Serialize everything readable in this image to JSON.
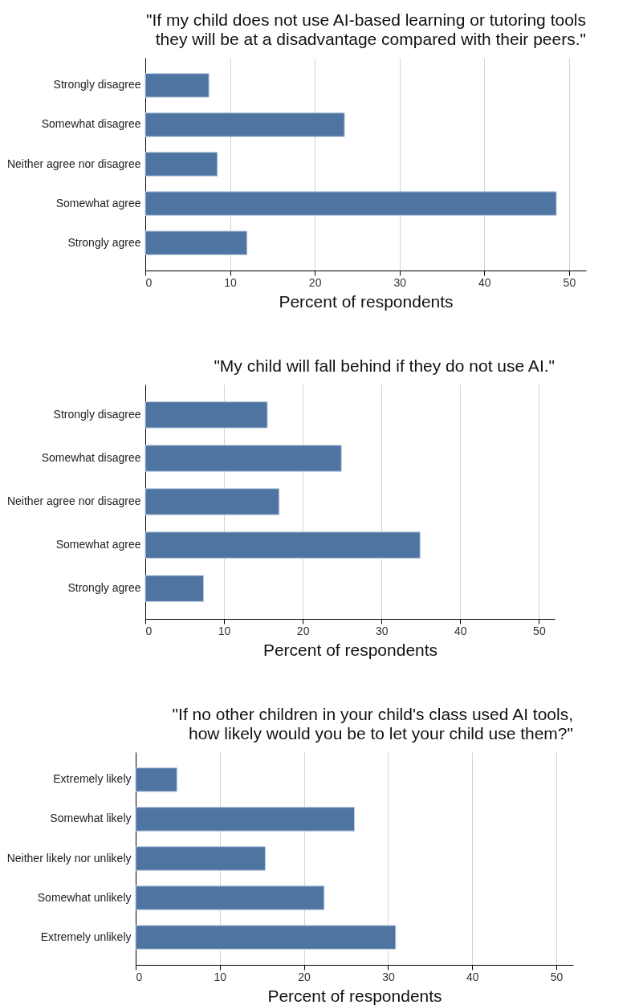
{
  "chart_data": [
    {
      "type": "bar",
      "orientation": "horizontal",
      "title": "\"If my child does not use AI-based learning or tutoring tools\nthey will be at a disadvantage compared with their peers.\"",
      "categories": [
        "Strongly disagree",
        "Somewhat disagree",
        "Neither agree nor disagree",
        "Somewhat agree",
        "Strongly agree"
      ],
      "values": [
        7.5,
        23.5,
        8.5,
        48.5,
        12.0
      ],
      "color": "#4e74a2",
      "xlim": [
        0,
        52
      ],
      "xticks": [
        0,
        10,
        20,
        30,
        40,
        50
      ],
      "xlabel": "Percent of respondents",
      "grid": "x"
    },
    {
      "type": "bar",
      "orientation": "horizontal",
      "title": "\"My child will fall behind if they do not use AI.\"",
      "categories": [
        "Strongly disagree",
        "Somewhat disagree",
        "Neither agree nor disagree",
        "Somewhat agree",
        "Strongly agree"
      ],
      "values": [
        15.5,
        24.9,
        17.0,
        34.9,
        7.4
      ],
      "color": "#4e74a2",
      "xlim": [
        0,
        52
      ],
      "xticks": [
        0,
        10,
        20,
        30,
        40,
        50
      ],
      "xlabel": "Percent of respondents",
      "grid": "x"
    },
    {
      "type": "bar",
      "orientation": "horizontal",
      "title": "\"If no other children in your child's class used AI tools,\nhow likely would you be to let your child use them?\"",
      "categories": [
        "Extremely likely",
        "Somewhat likely",
        "Neither likely nor unlikely",
        "Somewhat unlikely",
        "Extremely unlikely"
      ],
      "values": [
        4.9,
        26.0,
        15.4,
        22.4,
        30.9
      ],
      "color": "#4e74a2",
      "xlim": [
        0,
        52
      ],
      "xticks": [
        0,
        10,
        20,
        30,
        40,
        50
      ],
      "xlabel": "Percent of respondents",
      "grid": "x"
    }
  ]
}
